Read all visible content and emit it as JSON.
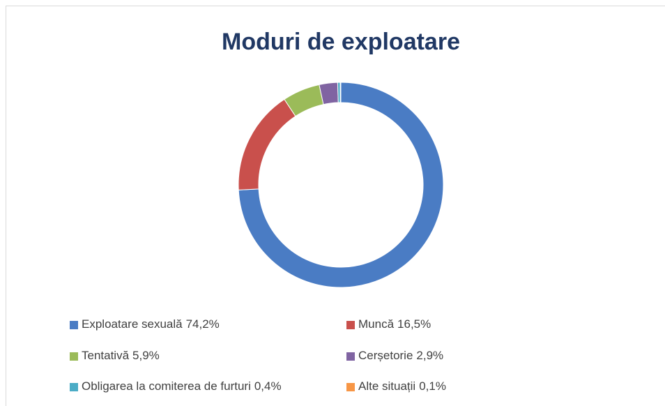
{
  "chart_data": {
    "type": "donut",
    "title": "Moduri de exploatare",
    "categories": [
      "Exploatare sexuală",
      "Muncă",
      "Tentativă",
      "Cerșetorie",
      "Obligarea la comiterea de furturi",
      "Alte situații"
    ],
    "values": [
      74.2,
      16.5,
      5.9,
      2.9,
      0.4,
      0.1
    ],
    "value_labels": [
      "74,2%",
      "16,5%",
      "5,9%",
      "2,9%",
      "0,4%",
      "0,1%"
    ],
    "colors": [
      "#4a7cc4",
      "#c9504c",
      "#9bbb59",
      "#8064a2",
      "#4bacc6",
      "#f79646"
    ],
    "legend": "bottom"
  }
}
